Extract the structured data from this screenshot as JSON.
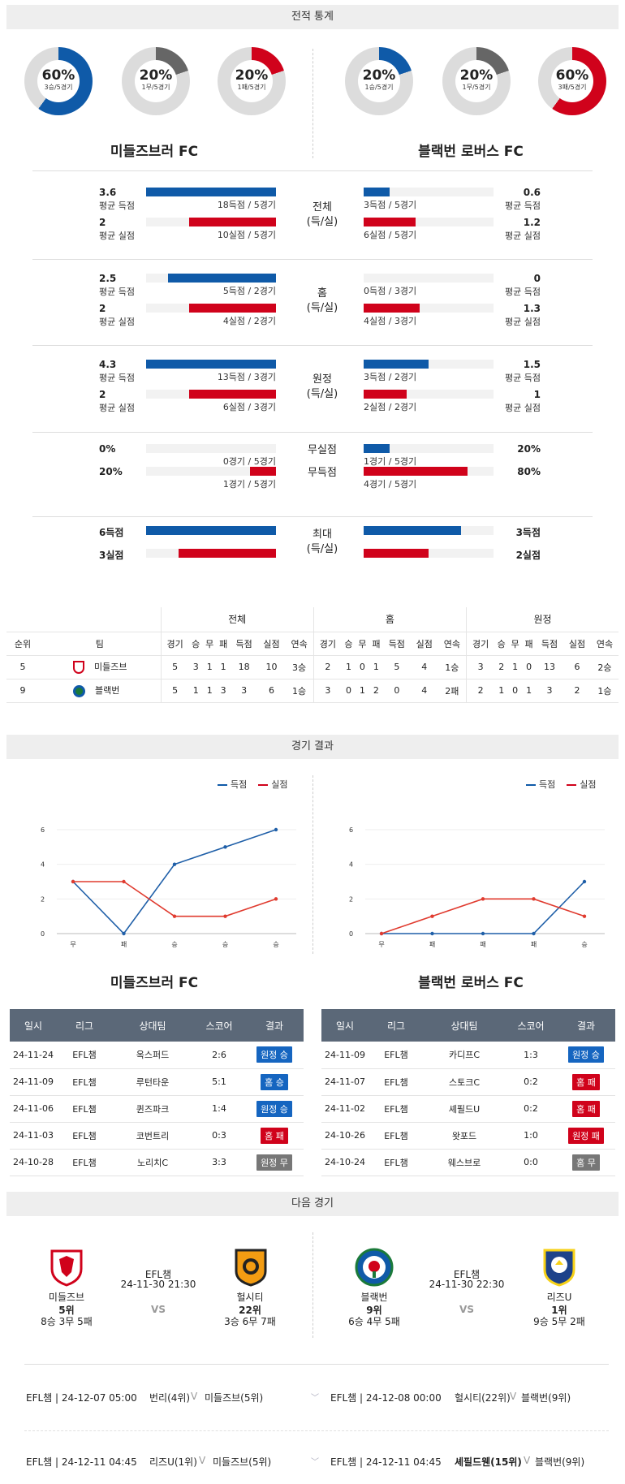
{
  "sections": {
    "stats": "전적 통계",
    "results": "경기 결과",
    "next": "다음 경기"
  },
  "rings": [
    {
      "pct": "60%",
      "sub": "3승/5경기",
      "value": 0.6,
      "color": "#0f5aa8"
    },
    {
      "pct": "20%",
      "sub": "1무/5경기",
      "value": 0.2,
      "color": "#666666"
    },
    {
      "pct": "20%",
      "sub": "1패/5경기",
      "value": 0.2,
      "color": "#d0021b"
    },
    {
      "pct": "20%",
      "sub": "1승/5경기",
      "value": 0.2,
      "color": "#0f5aa8"
    },
    {
      "pct": "20%",
      "sub": "1무/5경기",
      "value": 0.2,
      "color": "#666666"
    },
    {
      "pct": "60%",
      "sub": "3패/5경기",
      "value": 0.6,
      "color": "#d0021b"
    }
  ],
  "teams": {
    "home": "미들즈브러 FC",
    "away": "블랙번 로버스 FC"
  },
  "compare": [
    {
      "center": [
        "전체",
        "(득/실)"
      ],
      "rows": [
        {
          "lv": "3.6",
          "ll": "평균 득점",
          "lbar": 1.0,
          "lcap": "18득점 / 5경기",
          "rv": "0.6",
          "rl": "평균 득점",
          "rbar": 0.2,
          "rcap": "3득점 / 5경기",
          "type": "gain"
        },
        {
          "lv": "2",
          "ll": "평균 실점",
          "lbar": 0.67,
          "lcap": "10실점 / 5경기",
          "rv": "1.2",
          "rl": "평균 실점",
          "rbar": 0.4,
          "rcap": "6실점 / 5경기",
          "type": "loss"
        }
      ]
    },
    {
      "center": [
        "홈",
        "(득/실)"
      ],
      "rows": [
        {
          "lv": "2.5",
          "ll": "평균 득점",
          "lbar": 0.83,
          "lcap": "5득점 / 2경기",
          "rv": "0",
          "rl": "평균 득점",
          "rbar": 0,
          "rcap": "0득점 / 3경기",
          "type": "gain"
        },
        {
          "lv": "2",
          "ll": "평균 실점",
          "lbar": 0.67,
          "lcap": "4실점 / 2경기",
          "rv": "1.3",
          "rl": "평균 실점",
          "rbar": 0.43,
          "rcap": "4실점 / 3경기",
          "type": "loss"
        }
      ]
    },
    {
      "center": [
        "원정",
        "(득/실)"
      ],
      "rows": [
        {
          "lv": "4.3",
          "ll": "평균 득점",
          "lbar": 1.0,
          "lcap": "13득점 / 3경기",
          "rv": "1.5",
          "rl": "평균 득점",
          "rbar": 0.5,
          "rcap": "3득점 / 2경기",
          "type": "gain"
        },
        {
          "lv": "2",
          "ll": "평균 실점",
          "lbar": 0.67,
          "lcap": "6실점 / 3경기",
          "rv": "1",
          "rl": "평균 실점",
          "rbar": 0.33,
          "rcap": "2실점 / 2경기",
          "type": "loss"
        }
      ]
    },
    {
      "center": [],
      "rows": [
        {
          "lv": "0%",
          "ll": "",
          "lbar": 0,
          "lcap": "0경기 / 5경기",
          "rv": "20%",
          "rl": "",
          "rbar": 0.2,
          "rcap": "1경기 / 5경기",
          "type": "gain",
          "mid": "무실점"
        },
        {
          "lv": "20%",
          "ll": "",
          "lbar": 0.2,
          "lcap": "1경기 / 5경기",
          "rv": "80%",
          "rl": "",
          "rbar": 0.8,
          "rcap": "4경기 / 5경기",
          "type": "loss",
          "mid": "무득점"
        }
      ]
    },
    {
      "center": [
        "최대",
        "(득/실)"
      ],
      "rows": [
        {
          "lv": "6득점",
          "ll": "",
          "lbar": 1.0,
          "lcap": "",
          "rv": "3득점",
          "rl": "",
          "rbar": 0.75,
          "rcap": "",
          "type": "gain"
        },
        {
          "lv": "3실점",
          "ll": "",
          "lbar": 0.75,
          "lcap": "",
          "rv": "2실점",
          "rl": "",
          "rbar": 0.5,
          "rcap": "",
          "type": "loss"
        }
      ]
    }
  ],
  "standings": {
    "groups": [
      "전체",
      "홈",
      "원정"
    ],
    "cols": [
      "순위",
      "팀",
      "경기",
      "승",
      "무",
      "패",
      "득점",
      "실점",
      "연속",
      "경기",
      "승",
      "무",
      "패",
      "득점",
      "실점",
      "연속",
      "경기",
      "승",
      "무",
      "패",
      "득점",
      "실점",
      "연속"
    ],
    "rows": [
      [
        "5",
        "미들즈브",
        "5",
        "3",
        "1",
        "1",
        "18",
        "10",
        "3승",
        "2",
        "1",
        "0",
        "1",
        "5",
        "4",
        "1승",
        "3",
        "2",
        "1",
        "0",
        "13",
        "6",
        "2승"
      ],
      [
        "9",
        "블랙번",
        "5",
        "1",
        "1",
        "3",
        "3",
        "6",
        "1승",
        "3",
        "0",
        "1",
        "2",
        "0",
        "4",
        "2패",
        "2",
        "1",
        "0",
        "1",
        "3",
        "2",
        "1승"
      ]
    ]
  },
  "result_charts": [
    {
      "legend": [
        "득점",
        "실점"
      ],
      "x": [
        "무",
        "패",
        "승",
        "승",
        "승"
      ],
      "yticks": [
        "0",
        "2",
        "4",
        "6"
      ],
      "ylim": [
        0,
        6
      ],
      "gain": [
        3,
        0,
        4,
        5,
        6
      ],
      "loss": [
        3,
        3,
        1,
        1,
        2
      ]
    },
    {
      "legend": [
        "득점",
        "실점"
      ],
      "x": [
        "무",
        "패",
        "패",
        "패",
        "승"
      ],
      "yticks": [
        "0",
        "2",
        "4",
        "6"
      ],
      "ylim": [
        0,
        6
      ],
      "gain": [
        0,
        0,
        0,
        0,
        3
      ],
      "loss": [
        0,
        1,
        2,
        2,
        1
      ]
    }
  ],
  "chart_data": [
    {
      "type": "line",
      "x": [
        "무",
        "패",
        "승",
        "승",
        "승"
      ],
      "series": [
        {
          "name": "득점",
          "values": [
            3,
            0,
            4,
            5,
            6
          ]
        },
        {
          "name": "실점",
          "values": [
            3,
            3,
            1,
            1,
            2
          ]
        }
      ],
      "ylim": [
        0,
        6
      ]
    },
    {
      "type": "line",
      "x": [
        "무",
        "패",
        "패",
        "패",
        "승"
      ],
      "series": [
        {
          "name": "득점",
          "values": [
            0,
            0,
            0,
            0,
            3
          ]
        },
        {
          "name": "실점",
          "values": [
            0,
            1,
            2,
            2,
            1
          ]
        }
      ],
      "ylim": [
        0,
        6
      ]
    }
  ],
  "results_tables": {
    "headers": [
      "일시",
      "리그",
      "상대팀",
      "스코어",
      "결과"
    ],
    "home": [
      [
        "24-11-24",
        "EFL챔",
        "옥스퍼드",
        "2:6",
        "원정 승",
        "blue"
      ],
      [
        "24-11-09",
        "EFL챔",
        "루턴타운",
        "5:1",
        "홈 승",
        "blue"
      ],
      [
        "24-11-06",
        "EFL챔",
        "퀸즈파크",
        "1:4",
        "원정 승",
        "blue"
      ],
      [
        "24-11-03",
        "EFL챔",
        "코번트리",
        "0:3",
        "홈 패",
        "red"
      ],
      [
        "24-10-28",
        "EFL챔",
        "노리치C",
        "3:3",
        "원정 무",
        "gray"
      ]
    ],
    "away": [
      [
        "24-11-09",
        "EFL챔",
        "카디프C",
        "1:3",
        "원정 승",
        "blue"
      ],
      [
        "24-11-07",
        "EFL챔",
        "스토크C",
        "0:2",
        "홈 패",
        "red"
      ],
      [
        "24-11-02",
        "EFL챔",
        "셰필드U",
        "0:2",
        "홈 패",
        "red"
      ],
      [
        "24-10-26",
        "EFL챔",
        "왓포드",
        "1:0",
        "원정 패",
        "red"
      ],
      [
        "24-10-24",
        "EFL챔",
        "웨스브로",
        "0:0",
        "홈 무",
        "gray"
      ]
    ]
  },
  "next_matches": [
    {
      "league": "EFL챔",
      "time": "24-11-30 21:30",
      "vs": "VS",
      "home": {
        "name": "미들즈브",
        "rank": "5위",
        "record": "8승 3무 5패"
      },
      "away": {
        "name": "헐시티",
        "rank": "22위",
        "record": "3승 6무 7패"
      }
    },
    {
      "league": "EFL챔",
      "time": "24-11-30 22:30",
      "vs": "VS",
      "home": {
        "name": "블랙번",
        "rank": "9위",
        "record": "6승 4무 5패"
      },
      "away": {
        "name": "리즈U",
        "rank": "1위",
        "record": "9승 5무 2패"
      }
    }
  ],
  "upcoming": [
    {
      "info": "EFL챔 | 24-12-07 05:00",
      "teams": "번리(4위)",
      "v": "V",
      "opp": "미들즈브(5위)"
    },
    {
      "info": "EFL챔 | 24-12-08 00:00",
      "teams": "헐시티(22위)",
      "v": "V",
      "opp": "블랙번(9위)"
    },
    {
      "info": "EFL챔 | 24-12-11 04:45",
      "teams": "리즈U(1위)",
      "v": "V",
      "opp": "미들즈브(5위)"
    },
    {
      "info": "EFL챔 | 24-12-11 04:45",
      "teams": "셰필드웬(15위)",
      "v": "V",
      "opp": "블랙번(9위)"
    }
  ]
}
